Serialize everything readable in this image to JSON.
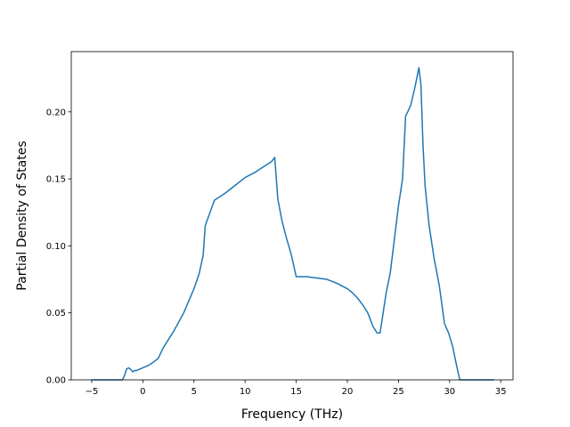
{
  "chart_data": {
    "type": "line",
    "title": "",
    "xlabel": "Frequency (THz)",
    "ylabel": "Partial Density of States",
    "xlim": [
      -7.0,
      36.2
    ],
    "ylim": [
      0.0,
      0.245
    ],
    "xticks": [
      -5,
      0,
      5,
      10,
      15,
      20,
      25,
      30,
      35
    ],
    "xtick_labels": [
      "−5",
      "0",
      "5",
      "10",
      "15",
      "20",
      "25",
      "30",
      "35"
    ],
    "yticks": [
      0.0,
      0.05,
      0.1,
      0.15,
      0.2
    ],
    "ytick_labels": [
      "0.00",
      "0.05",
      "0.10",
      "0.15",
      "0.20"
    ],
    "grid": false,
    "line_color": "#1f77b4",
    "series": [
      {
        "x": [
          -5.0,
          -2.0,
          -1.8,
          -1.6,
          -1.4,
          -1.2,
          -1.0,
          -0.8,
          -0.6,
          -0.3,
          0.0,
          0.3,
          0.6,
          1.0,
          1.5,
          2.0,
          3.0,
          4.0,
          5.0,
          5.5,
          5.9,
          6.1,
          7.0,
          8.0,
          9.0,
          10.0,
          11.0,
          12.0,
          12.6,
          12.9,
          13.2,
          13.6,
          14.0,
          14.5,
          15.0,
          15.5,
          16.0,
          17.0,
          18.0,
          19.0,
          20.0,
          20.5,
          21.0,
          21.5,
          22.0,
          22.5,
          22.9,
          23.2,
          23.4,
          23.6,
          23.8,
          24.2,
          24.6,
          25.0,
          25.4,
          25.7,
          25.9,
          26.2,
          26.6,
          27.0,
          27.2,
          27.4,
          27.6,
          28.0,
          28.5,
          29.0,
          29.5,
          29.9,
          30.3,
          30.7,
          31.0,
          31.2,
          31.5,
          34.3
        ],
        "y": [
          0.0,
          0.0,
          0.003,
          0.008,
          0.009,
          0.008,
          0.006,
          0.007,
          0.007,
          0.008,
          0.009,
          0.01,
          0.011,
          0.013,
          0.016,
          0.024,
          0.036,
          0.05,
          0.068,
          0.079,
          0.093,
          0.115,
          0.134,
          0.139,
          0.145,
          0.151,
          0.155,
          0.16,
          0.163,
          0.166,
          0.135,
          0.119,
          0.107,
          0.094,
          0.077,
          0.077,
          0.077,
          0.076,
          0.075,
          0.072,
          0.068,
          0.065,
          0.061,
          0.056,
          0.05,
          0.04,
          0.035,
          0.035,
          0.045,
          0.055,
          0.065,
          0.08,
          0.105,
          0.13,
          0.15,
          0.197,
          0.2,
          0.205,
          0.218,
          0.233,
          0.22,
          0.175,
          0.145,
          0.115,
          0.09,
          0.07,
          0.042,
          0.035,
          0.025,
          0.01,
          0.0,
          0.0,
          0.0,
          0.0
        ]
      }
    ]
  }
}
